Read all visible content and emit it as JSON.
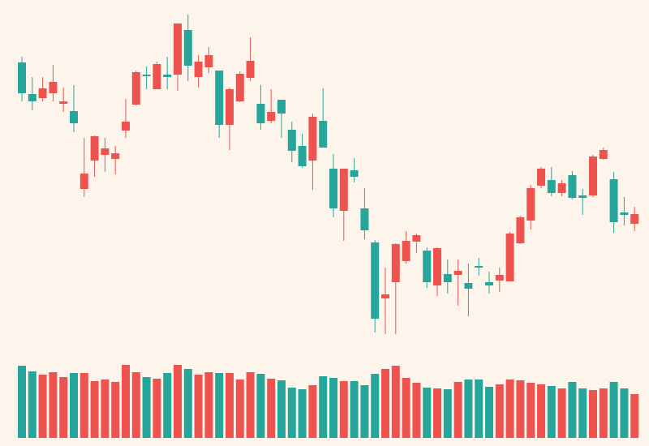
{
  "chart_data": {
    "type": "candlestick",
    "background": "#fdf5ec",
    "up_color": "#ef5350",
    "down_color": "#26a69a",
    "ylim": [
      0,
      450
    ],
    "volume_ylim": [
      0,
      100
    ],
    "open": [
      373,
      334,
      329,
      335,
      322,
      313,
      217,
      252,
      259,
      254,
      289,
      321,
      358,
      340,
      358,
      358,
      413,
      355,
      367,
      363,
      296,
      325,
      354,
      322,
      301,
      327,
      290,
      270,
      252,
      301,
      242,
      190,
      240,
      193,
      151,
      82,
      102,
      128,
      152,
      141,
      98,
      112,
      111,
      101,
      122,
      102,
      104,
      103,
      150,
      178,
      221,
      228,
      212,
      234,
      209,
      209,
      254,
      229,
      188,
      174
    ],
    "high": [
      380,
      355,
      355,
      370,
      342,
      345,
      280,
      283,
      280,
      270,
      328,
      363,
      368,
      374,
      380,
      421,
      432,
      382,
      392,
      363,
      342,
      362,
      404,
      345,
      340,
      327,
      300,
      285,
      310,
      341,
      260,
      242,
      255,
      218,
      154,
      120,
      150,
      165,
      162,
      145,
      145,
      130,
      130,
      125,
      132,
      115,
      120,
      164,
      184,
      222,
      244,
      244,
      228,
      239,
      217,
      259,
      268,
      238,
      207,
      195
    ],
    "low": [
      325,
      314,
      325,
      325,
      312,
      287,
      207,
      232,
      238,
      235,
      280,
      320,
      340,
      340,
      340,
      338,
      350,
      342,
      360,
      280,
      265,
      324,
      350,
      290,
      298,
      280,
      250,
      243,
      216,
      268,
      182,
      153,
      225,
      155,
      40,
      38,
      38,
      125,
      138,
      95,
      85,
      88,
      73,
      60,
      110,
      88,
      90,
      103,
      149,
      167,
      218,
      208,
      208,
      204,
      185,
      207,
      253,
      163,
      172,
      165
    ],
    "close": [
      335,
      325,
      341,
      349,
      325,
      298,
      236,
      282,
      267,
      261,
      300,
      361,
      356,
      371,
      355,
      421,
      369,
      374,
      382,
      296,
      340,
      359,
      375,
      298,
      312,
      310,
      264,
      245,
      306,
      268,
      193,
      242,
      232,
      166,
      57,
      87,
      149,
      153,
      160,
      102,
      144,
      102,
      116,
      94,
      120,
      98,
      111,
      162,
      182,
      218,
      242,
      212,
      224,
      206,
      206,
      257,
      265,
      176,
      185,
      186
    ],
    "volume": [
      89,
      82,
      78,
      81,
      75,
      80,
      80,
      70,
      72,
      69,
      90,
      81,
      75,
      73,
      80,
      90,
      85,
      78,
      81,
      80,
      80,
      72,
      81,
      79,
      73,
      71,
      62,
      60,
      65,
      76,
      74,
      70,
      70,
      65,
      79,
      85,
      89,
      74,
      68,
      62,
      61,
      60,
      69,
      72,
      72,
      63,
      66,
      72,
      71,
      68,
      66,
      64,
      61,
      69,
      61,
      59,
      61,
      69,
      61,
      54
    ]
  }
}
